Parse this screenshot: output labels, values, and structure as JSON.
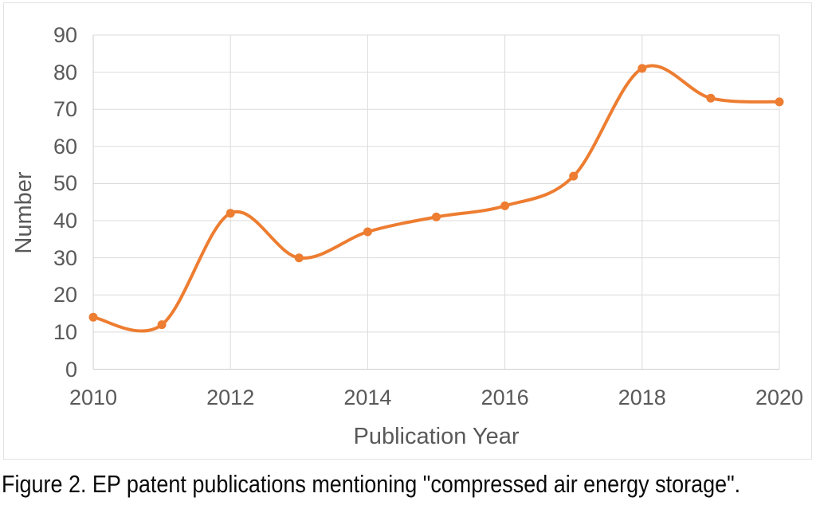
{
  "figure": {
    "caption": "Figure 2. EP patent publications mentioning \"compressed air energy storage\"."
  },
  "chart_data": {
    "type": "line",
    "title": "",
    "x": [
      2010,
      2011,
      2012,
      2013,
      2014,
      2015,
      2016,
      2017,
      2018,
      2019,
      2020
    ],
    "values": [
      14,
      12,
      42,
      30,
      37,
      41,
      44,
      52,
      81,
      73,
      72
    ],
    "xlabel": "Publication Year",
    "ylabel": "Number",
    "ylim": [
      0,
      90
    ],
    "y_ticks": [
      0,
      10,
      20,
      30,
      40,
      50,
      60,
      70,
      80,
      90
    ],
    "x_tick_years": [
      2010,
      2012,
      2014,
      2016,
      2018,
      2020
    ],
    "grid": true,
    "legend": false,
    "smooth_line": true,
    "marker": "circle",
    "line_color": "#ED7D31",
    "axis_text_color": "#595959",
    "gridline_color": "#DBDBDB",
    "axis_line_color": "#CFCFCF"
  }
}
